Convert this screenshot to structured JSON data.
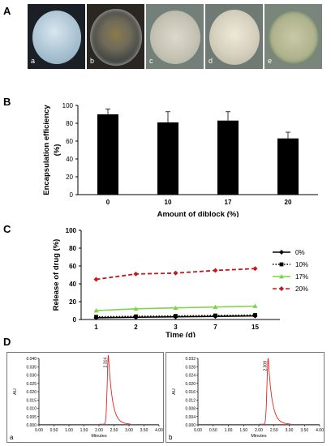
{
  "panel_letters": {
    "a": "A",
    "b": "B",
    "c": "C",
    "d": "D"
  },
  "micrographs": [
    {
      "label": "a",
      "style": "white-bead"
    },
    {
      "label": "b",
      "style": "dark-textured"
    },
    {
      "label": "c",
      "style": "pale-granular"
    },
    {
      "label": "d",
      "style": "pale-granular"
    },
    {
      "label": "e",
      "style": "pale-granular-green"
    }
  ],
  "chart_data": [
    {
      "id": "B",
      "type": "bar",
      "ylabel": "Encapsulation efficiency (%)",
      "xlabel": "Amount of diblock (%)",
      "categories": [
        "0",
        "10",
        "17",
        "20"
      ],
      "values": [
        90,
        81,
        83,
        63
      ],
      "errors": [
        6,
        12,
        10,
        7
      ],
      "ylim": [
        0,
        100
      ],
      "yticks": [
        "0",
        "20",
        "40",
        "60",
        "80",
        "100"
      ],
      "bar_color": "#000000"
    },
    {
      "id": "C",
      "type": "line",
      "ylabel": "Release of drug (%)",
      "xlabel": "Time (d)",
      "categories": [
        "1",
        "2",
        "3",
        "7",
        "15"
      ],
      "ylim": [
        0,
        100
      ],
      "yticks": [
        "0",
        "20",
        "40",
        "60",
        "80",
        "100"
      ],
      "legend_position": "right",
      "series": [
        {
          "name": "0%",
          "values": [
            2,
            2.5,
            3,
            3.5,
            4
          ],
          "color": "#000000",
          "dash": "solid",
          "marker": "diamond"
        },
        {
          "name": "10%",
          "values": [
            3,
            3.5,
            4,
            4.5,
            5
          ],
          "color": "#000000",
          "dash": "dotted",
          "marker": "square"
        },
        {
          "name": "17%",
          "values": [
            10,
            12,
            13,
            14,
            15
          ],
          "color": "#7fd44a",
          "dash": "solid",
          "marker": "triangle"
        },
        {
          "name": "20%",
          "values": [
            45,
            51,
            52,
            55,
            57
          ],
          "color": "#c8161d",
          "dash": "dashed",
          "marker": "diamond"
        }
      ]
    },
    {
      "id": "D-a",
      "type": "line",
      "panel_label": "a",
      "ylabel": "AU",
      "xlabel": "Minutes",
      "xlim": [
        0,
        4
      ],
      "ylim": [
        0,
        0.04
      ],
      "xticks": [
        "0.00",
        "0.50",
        "1.00",
        "1.50",
        "2.00",
        "2.50",
        "3.00",
        "3.50",
        "4.00"
      ],
      "yticks": [
        "0.000",
        "0.005",
        "0.010",
        "0.015",
        "0.020",
        "0.025",
        "0.030",
        "0.035",
        "0.040"
      ],
      "peak_label": "2.314",
      "peak_x": 2.314,
      "peak_y": 0.042,
      "color": "#e8241f"
    },
    {
      "id": "D-b",
      "type": "line",
      "panel_label": "b",
      "ylabel": "AU",
      "xlabel": "Minutes",
      "xlim": [
        0,
        4
      ],
      "ylim": [
        0,
        0.032
      ],
      "xticks": [
        "0.00",
        "0.50",
        "1.00",
        "1.50",
        "2.00",
        "2.50",
        "3.00",
        "3.50",
        "4.00"
      ],
      "yticks": [
        "0.000",
        "0.004",
        "0.008",
        "0.012",
        "0.016",
        "0.020",
        "0.024",
        "0.028",
        "0.032"
      ],
      "peak_label": "2.309",
      "peak_x": 2.309,
      "peak_y": 0.032,
      "color": "#e8241f"
    }
  ]
}
